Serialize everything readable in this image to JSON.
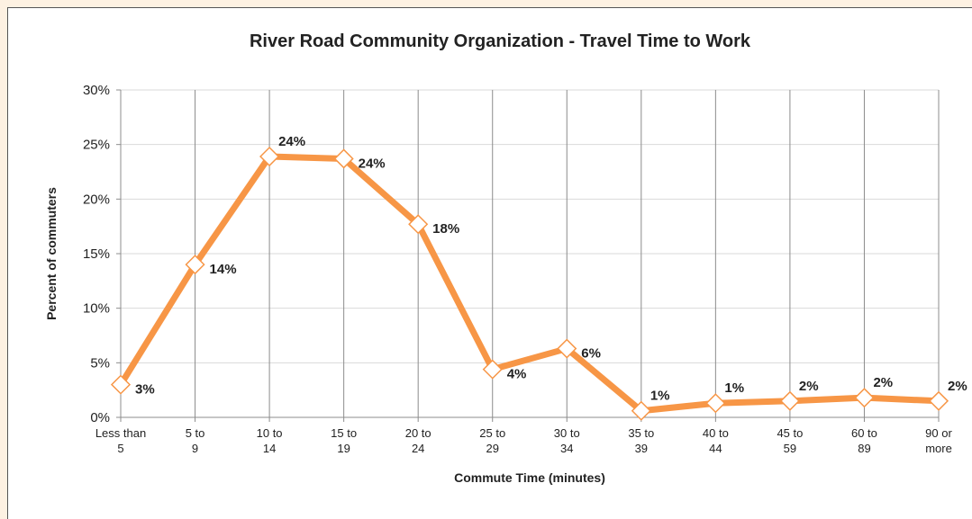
{
  "chart_data": {
    "type": "line",
    "title": "River Road Community Organization - Travel Time to Work",
    "x_label": "Commute Time (minutes)",
    "y_label": "Percent of commuters",
    "categories": [
      "Less than 5",
      "5 to 9",
      "10 to 14",
      "15 to 19",
      "20 to 24",
      "25 to 29",
      "30 to 34",
      "35 to 39",
      "40 to 44",
      "45 to 59",
      "60 to 89",
      "90 or more"
    ],
    "series": [
      {
        "name": "Percent of commuters",
        "color": "#f79646",
        "values": [
          3.0,
          14.0,
          23.9,
          23.7,
          17.7,
          4.4,
          6.3,
          0.6,
          1.3,
          1.5,
          1.8,
          1.5
        ],
        "value_labels": [
          "3%",
          "14%",
          "24%",
          "24%",
          "18%",
          "4%",
          "6%",
          "1%",
          "1%",
          "2%",
          "2%",
          "2%"
        ]
      }
    ],
    "ylim": [
      0,
      30
    ],
    "yticks": [
      {
        "value": 0,
        "label": "0%"
      },
      {
        "value": 5,
        "label": "5%"
      },
      {
        "value": 10,
        "label": "10%"
      },
      {
        "value": 15,
        "label": "15%"
      },
      {
        "value": 20,
        "label": "20%"
      },
      {
        "value": 25,
        "label": "25%"
      },
      {
        "value": 30,
        "label": "30%"
      }
    ],
    "grid": true
  }
}
